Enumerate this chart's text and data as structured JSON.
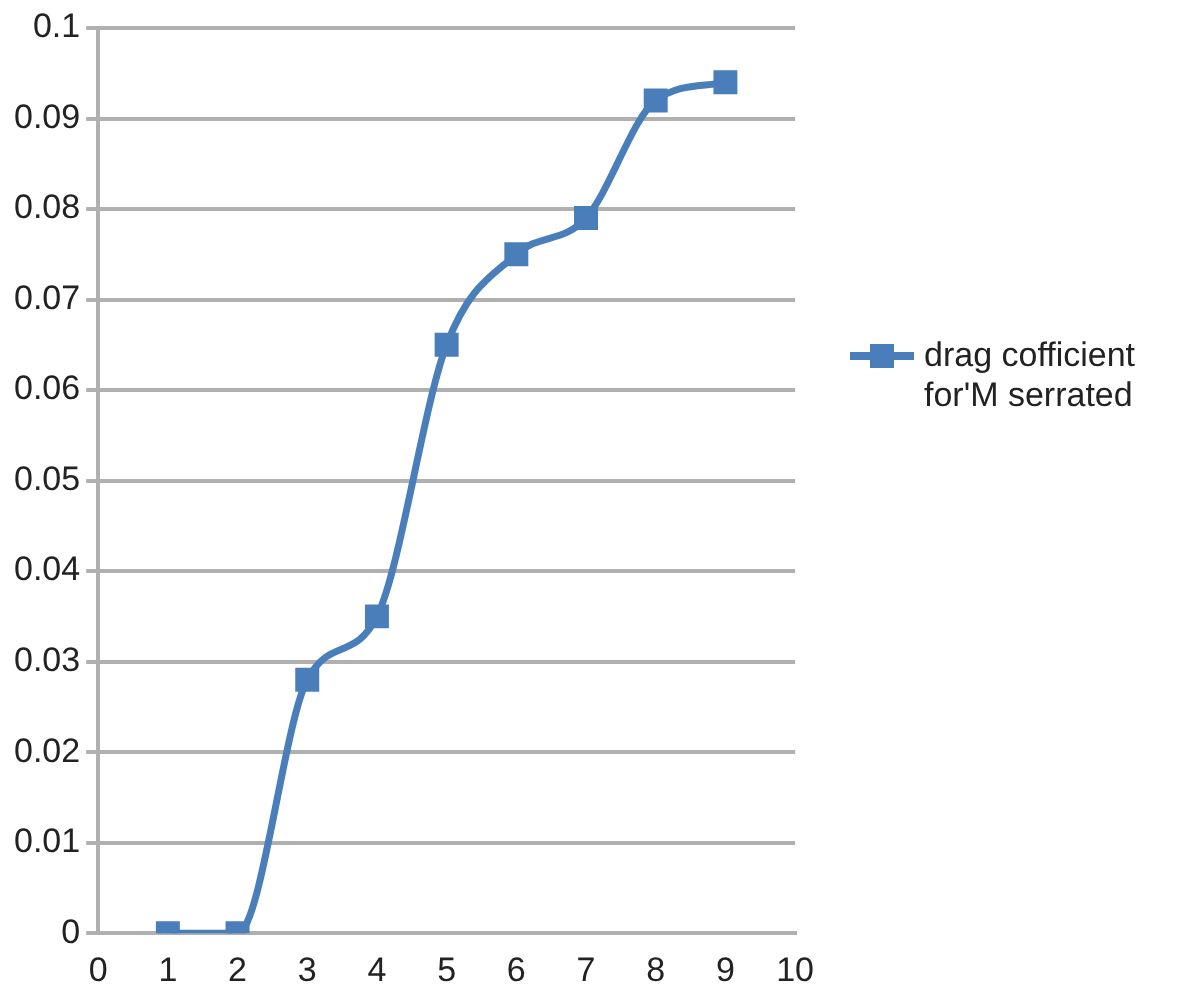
{
  "chart_data": {
    "type": "line",
    "x": [
      1,
      2,
      3,
      4,
      5,
      6,
      7,
      8,
      9
    ],
    "series": [
      {
        "name": "drag cofficient for'M serrated",
        "color": "#4a7ebb",
        "values": [
          0,
          0,
          0.028,
          0.035,
          0.065,
          0.075,
          0.079,
          0.092,
          0.094
        ]
      }
    ],
    "xlim": [
      0,
      10
    ],
    "xticks": [
      0,
      1,
      2,
      3,
      4,
      5,
      6,
      7,
      8,
      9,
      10
    ],
    "ylim": [
      0,
      0.1
    ],
    "yticks": [
      0,
      0.01,
      0.02,
      0.03,
      0.04,
      0.05,
      0.06,
      0.07,
      0.08,
      0.09,
      0.1
    ],
    "grid": "y",
    "legend": "right",
    "marker": "square",
    "line_style": "solid"
  }
}
